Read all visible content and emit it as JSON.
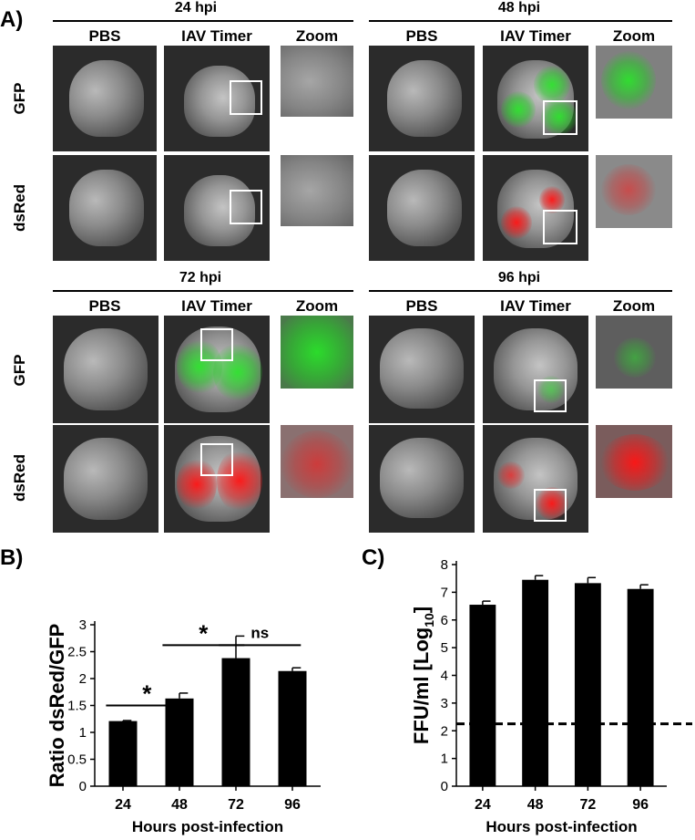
{
  "panel_a": {
    "letter": "A)",
    "columns": [
      "PBS",
      "IAV Timer",
      "Zoom"
    ],
    "rows": [
      "GFP",
      "dsRed"
    ],
    "timepoints": [
      "24 hpi",
      "48 hpi",
      "72 hpi",
      "96 hpi"
    ]
  },
  "panel_b": {
    "letter": "B)"
  },
  "panel_c": {
    "letter": "C)"
  },
  "chart_data": [
    {
      "type": "bar",
      "categories": [
        "24",
        "48",
        "72",
        "96"
      ],
      "values": [
        1.21,
        1.63,
        2.38,
        2.14
      ],
      "errors": [
        0.01,
        0.1,
        0.41,
        0.06
      ],
      "xlabel": "Hours post-infection",
      "ylabel": "Ratio dsRed/GFP",
      "ylim": [
        0,
        3
      ],
      "yticks": [
        "0",
        "0.5",
        "1",
        "1.5",
        "2",
        "2.5",
        "3"
      ],
      "annotations": [
        {
          "label": "*",
          "from": "24",
          "to": "48"
        },
        {
          "label": "*",
          "from": "48",
          "to": "72"
        },
        {
          "label": "ns",
          "from": "72",
          "to": "96"
        }
      ],
      "bar_color": "#000000"
    },
    {
      "type": "bar",
      "categories": [
        "24",
        "48",
        "72",
        "96"
      ],
      "values": [
        6.55,
        7.45,
        7.33,
        7.12
      ],
      "errors": [
        0.13,
        0.15,
        0.2,
        0.15
      ],
      "xlabel": "Hours post-infection",
      "ylabel_main": "FFU/ml [Log",
      "ylabel_sub": "10",
      "ylabel_end": "]",
      "ylim": [
        0,
        8
      ],
      "yticks": [
        "0",
        "1",
        "2",
        "3",
        "4",
        "5",
        "6",
        "7",
        "8"
      ],
      "detection_limit": 2.25,
      "bar_color": "#000000"
    }
  ]
}
